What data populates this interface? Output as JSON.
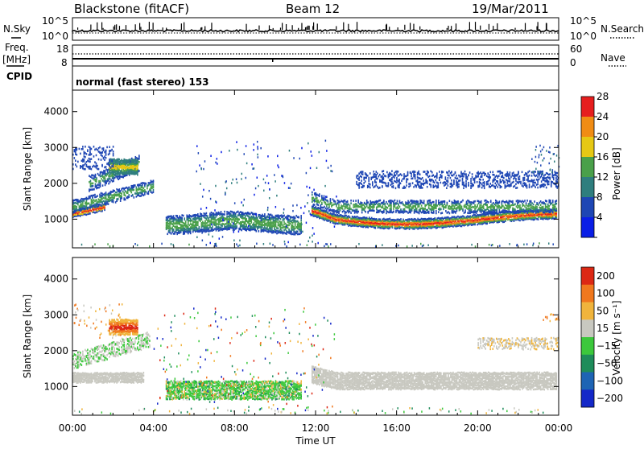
{
  "header": {
    "radar": "Blackstone (fitACF)",
    "beam": "Beam 12",
    "date": "19/Mar/2011"
  },
  "strip1": {
    "left_label": "N.Sky",
    "left_ticks": [
      "10^5",
      "10^0"
    ],
    "right_label": "N.Search",
    "right_ticks": [
      "10^5",
      "10^0"
    ]
  },
  "strip2": {
    "left_label_top": "Freq.",
    "left_label_bottom": "[MHz]",
    "left_ticks": [
      "18",
      "8"
    ],
    "right_label": "Nave",
    "right_ticks": [
      "60",
      "0"
    ]
  },
  "cpid": {
    "label": "CPID",
    "value": "normal (fast stereo) 153"
  },
  "chart_data": [
    {
      "type": "heatmap",
      "name": "power-panel",
      "ylabel": "Slant Range [km]",
      "xlabel": "Time UT",
      "x_range": [
        "00:00",
        "24:00"
      ],
      "y_range": [
        200,
        4600
      ],
      "yticks": [
        "1000",
        "2000",
        "3000",
        "4000"
      ],
      "xticks": [
        "00:00",
        "04:00",
        "08:00",
        "12:00",
        "16:00",
        "20:00",
        "00:00"
      ],
      "colorbar": {
        "label": "Power [dB]",
        "ticks": [
          "4",
          "8",
          "12",
          "16",
          "20",
          "24",
          "28"
        ],
        "colors": [
          "#0a1ee6",
          "#1e46b4",
          "#2f7e7e",
          "#4aa04a",
          "#e6c814",
          "#f08c14",
          "#e61e1e"
        ]
      }
    },
    {
      "type": "heatmap",
      "name": "velocity-panel",
      "ylabel": "Slant Range [km]",
      "xlabel": "Time UT",
      "x_range": [
        "00:00",
        "24:00"
      ],
      "y_range": [
        200,
        4600
      ],
      "yticks": [
        "1000",
        "2000",
        "3000",
        "4000"
      ],
      "xticks": [
        "00:00",
        "04:00",
        "08:00",
        "12:00",
        "16:00",
        "20:00",
        "00:00"
      ],
      "colorbar": {
        "label": "Velocity [m s⁻¹]",
        "ticks": [
          "200",
          "100",
          "50",
          "15",
          "−15",
          "−50",
          "−100",
          "−200"
        ],
        "colors": [
          "#1428c8",
          "#1e64b4",
          "#1e8c5a",
          "#3cc83c",
          "#c8c8c0",
          "#f0b43c",
          "#f0781e",
          "#dc2814"
        ]
      }
    }
  ],
  "xaxis_title": "Time UT"
}
